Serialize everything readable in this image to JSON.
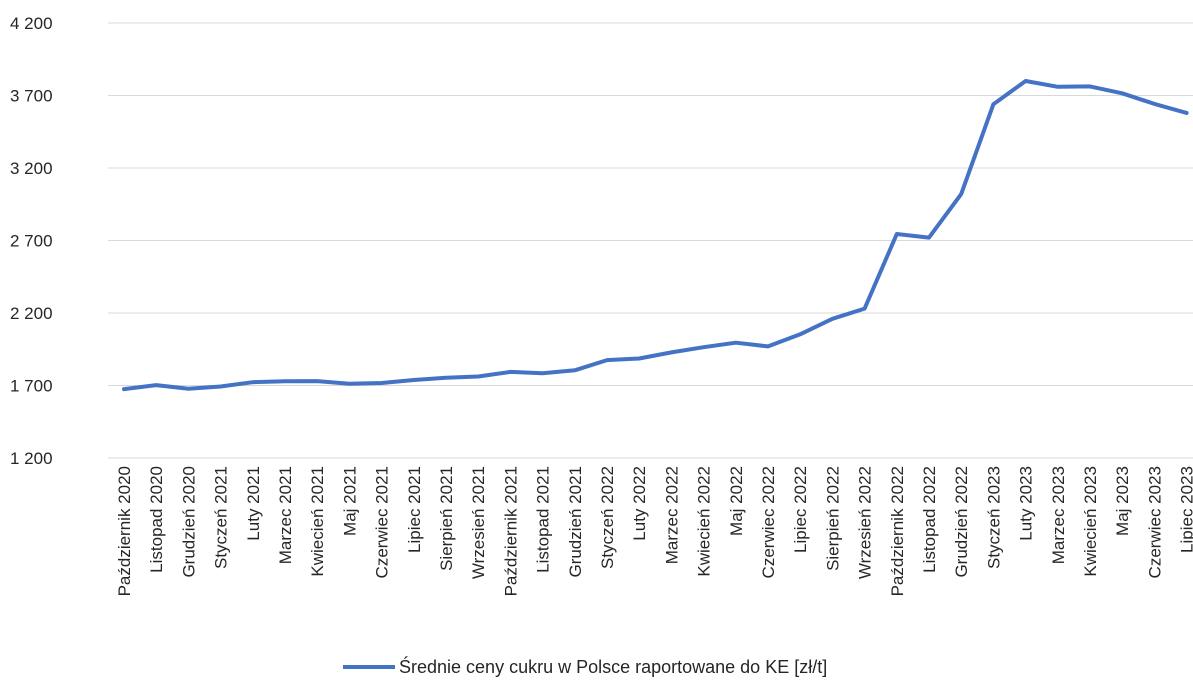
{
  "chart_data": {
    "type": "line",
    "title": "",
    "xlabel": "",
    "ylabel": "",
    "ylim": [
      1200,
      4200
    ],
    "yticks": [
      1200,
      1700,
      2200,
      2700,
      3200,
      3700,
      4200
    ],
    "ytick_labels": [
      "1 200",
      "1 700",
      "2 200",
      "2 700",
      "3 200",
      "3 700",
      "4 200"
    ],
    "grid": true,
    "legend_position": "bottom",
    "categories": [
      "Październik 2020",
      "Listopad 2020",
      "Grudzień 2020",
      "Styczeń 2021",
      "Luty 2021",
      "Marzec 2021",
      "Kwiecień 2021",
      "Maj 2021",
      "Czerwiec 2021",
      "Lipiec 2021",
      "Sierpień 2021",
      "Wrzesień 2021",
      "Październik 2021",
      "Listopad 2021",
      "Grudzień 2021",
      "Styczeń 2022",
      "Luty 2022",
      "Marzec 2022",
      "Kwiecień 2022",
      "Maj 2022",
      "Czerwiec 2022",
      "Lipiec 2022",
      "Sierpień 2022",
      "Wrzesień 2022",
      "Październik 2022",
      "Listopad 2022",
      "Grudzień 2022",
      "Styczeń 2023",
      "Luty 2023",
      "Marzec 2023",
      "Kwiecień 2023",
      "Maj 2023",
      "Czerwiec 2023",
      "Lipiec 2023"
    ],
    "series": [
      {
        "name": "Średnie ceny cukru w Polsce  raportowane do KE [zł/t]",
        "color": "#4472C4",
        "values": [
          1675,
          1703,
          1678,
          1693,
          1723,
          1729,
          1730,
          1712,
          1717,
          1738,
          1753,
          1762,
          1794,
          1785,
          1805,
          1875,
          1886,
          1928,
          1964,
          1995,
          1970,
          2053,
          2160,
          2230,
          2745,
          2720,
          3020,
          3640,
          3800,
          3760,
          3763,
          3715,
          3642,
          3580
        ]
      }
    ]
  }
}
